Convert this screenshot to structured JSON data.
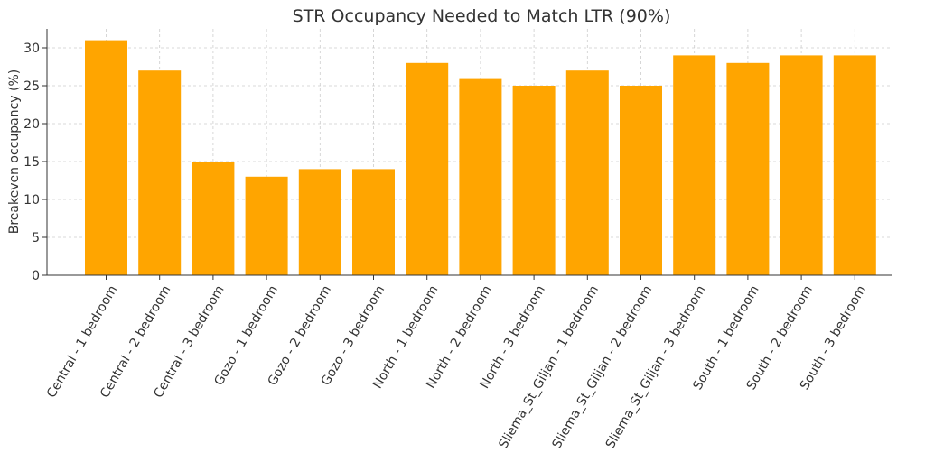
{
  "chart_data": {
    "type": "bar",
    "title": "STR Occupancy Needed to Match LTR (90%)",
    "xlabel": "",
    "ylabel": "Breakeven occupancy (%)",
    "ylim": [
      0,
      32.5
    ],
    "yticks": [
      0,
      5,
      10,
      15,
      20,
      25,
      30
    ],
    "grid": true,
    "bar_color": "#FFA500",
    "categories": [
      "Central - 1 bedroom",
      "Central - 2 bedroom",
      "Central - 3 bedroom",
      "Gozo - 1 bedroom",
      "Gozo - 2 bedroom",
      "Gozo - 3 bedroom",
      "North - 1 bedroom",
      "North - 2 bedroom",
      "North - 3 bedroom",
      "Sliema_St_Giljan - 1 bedroom",
      "Sliema_St_Giljan - 2 bedroom",
      "Sliema_St_Giljan - 3 bedroom",
      "South - 1 bedroom",
      "South - 2 bedroom",
      "South - 3 bedroom"
    ],
    "values": [
      31,
      27,
      15,
      13,
      14,
      14,
      28,
      26,
      25,
      27,
      25,
      29,
      28,
      29,
      29
    ]
  }
}
